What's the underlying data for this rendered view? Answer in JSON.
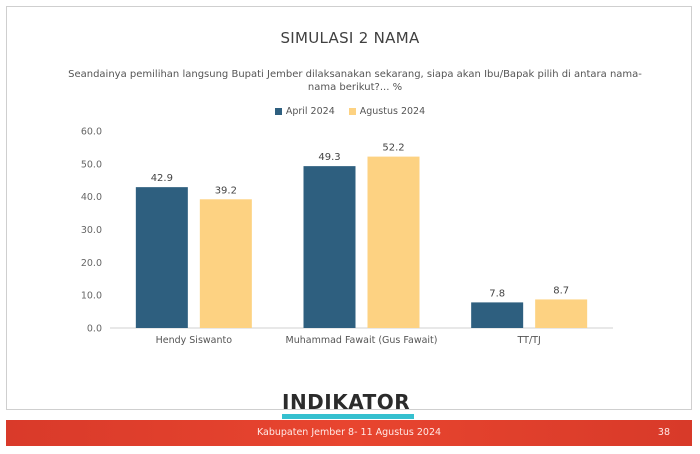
{
  "slide": {
    "title": "SIMULASI 2 NAMA",
    "question": "Seandainya pemilihan langsung Bupati Jember dilaksanakan sekarang, siapa akan Ibu/Bapak pilih di antara nama-nama berikut?... %"
  },
  "chart_data": {
    "type": "bar",
    "categories": [
      "Hendy Siswanto",
      "Muhammad Fawait (Gus Fawait)",
      "TT/TJ"
    ],
    "series": [
      {
        "name": "April 2024",
        "color": "#2e5f7f",
        "values": [
          42.9,
          49.3,
          7.8
        ]
      },
      {
        "name": "Agustus 2024",
        "color": "#fdd282",
        "values": [
          39.2,
          52.2,
          8.7
        ]
      }
    ],
    "ylim": [
      0,
      60
    ],
    "yticks": [
      "0.0",
      "10.0",
      "20.0",
      "30.0",
      "40.0",
      "50.0",
      "60.0"
    ],
    "data_labels": [
      [
        "42.9",
        "49.3",
        "7.8"
      ],
      [
        "39.2",
        "52.2",
        "8.7"
      ]
    ],
    "grid": false,
    "legend_position": "top"
  },
  "logo": {
    "text": "INDIKATOR"
  },
  "footer": {
    "text": "Kabupaten Jember 8- 11 Agustus 2024",
    "page": "38"
  }
}
